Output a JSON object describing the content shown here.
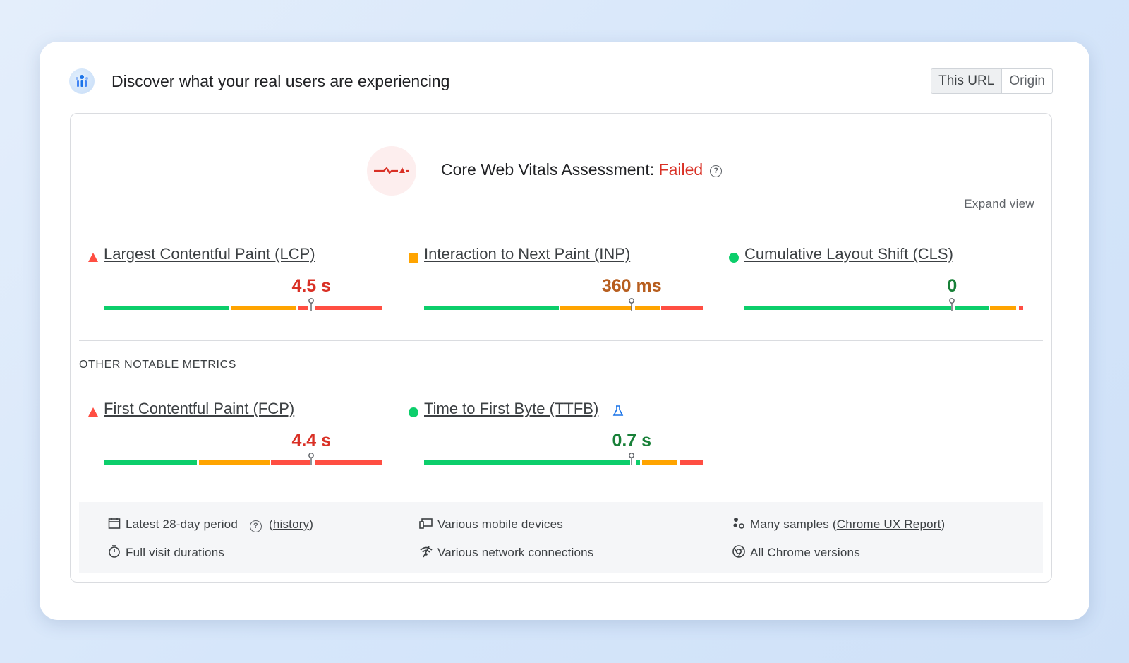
{
  "header": {
    "title": "Discover what your real users are experiencing",
    "toggle": [
      "This URL",
      "Origin"
    ]
  },
  "assessment": {
    "label": "Core Web Vitals Assessment: ",
    "status": "Failed",
    "help": "?",
    "expand": "Expand view"
  },
  "core_metrics": [
    {
      "name": "Largest Contentful Paint (LCP)",
      "value": "4.5 s",
      "rating": "poor",
      "marker_fraction": 0.745
    },
    {
      "name": "Interaction to Next Paint (INP)",
      "value": "360 ms",
      "rating": "needs-improvement",
      "marker_fraction": 0.745
    },
    {
      "name": "Cumulative Layout Shift (CLS)",
      "value": "0",
      "rating": "good",
      "marker_fraction": 0.745
    }
  ],
  "other_section": "OTHER NOTABLE METRICS",
  "other_metrics": [
    {
      "name": "First Contentful Paint (FCP)",
      "value": "4.4 s",
      "rating": "poor",
      "marker_fraction": 0.745
    },
    {
      "name": "Time to First Byte (TTFB)",
      "value": "0.7 s",
      "rating": "good",
      "marker_fraction": 0.745
    }
  ],
  "info": {
    "period": "Latest 28-day period",
    "history_open": "(",
    "history": "history",
    "history_close": ")",
    "durations": "Full visit durations",
    "devices": "Various mobile devices",
    "network": "Various network connections",
    "samples": "Many samples (",
    "samples_link": "Chrome UX Report",
    "samples_close": ")",
    "versions": "All Chrome versions"
  },
  "colors": {
    "good": "#0cce6b",
    "needs_improvement": "#ffa400",
    "poor": "#ff4e42",
    "poor_text": "#d93025",
    "ni_text": "#b75e1f",
    "good_text": "#188038"
  }
}
